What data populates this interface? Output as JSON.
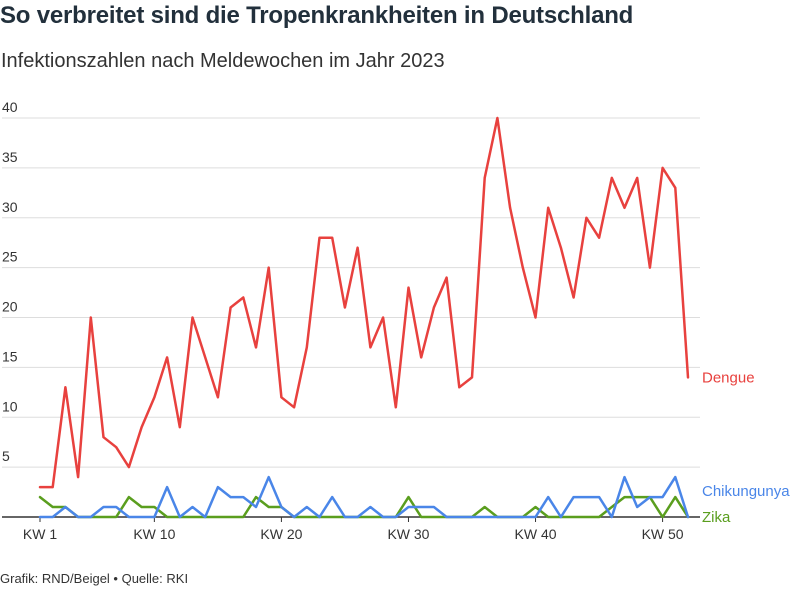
{
  "title": "So verbreitet sind die Tropenkrankheiten in Deutschland",
  "subtitle": "Infektionszahlen nach Meldewochen im Jahr 2023",
  "footer": "Grafik: RND/Beigel • Quelle: RKI",
  "chart_data": {
    "type": "line",
    "title": "So verbreitet sind die Tropenkrankheiten in Deutschland",
    "subtitle": "Infektionszahlen nach Meldewochen im Jahr 2023",
    "xlabel": "",
    "ylabel": "",
    "x": [
      1,
      2,
      3,
      4,
      5,
      6,
      7,
      8,
      9,
      10,
      11,
      12,
      13,
      14,
      15,
      16,
      17,
      18,
      19,
      20,
      21,
      22,
      23,
      24,
      25,
      26,
      27,
      28,
      29,
      30,
      31,
      32,
      33,
      34,
      35,
      36,
      37,
      38,
      39,
      40,
      41,
      42,
      43,
      44,
      45,
      46,
      47,
      48,
      49,
      50,
      51,
      52
    ],
    "xticks": [
      {
        "value": 1,
        "label": "KW 1"
      },
      {
        "value": 10,
        "label": "KW 10"
      },
      {
        "value": 20,
        "label": "KW 20"
      },
      {
        "value": 30,
        "label": "KW 30"
      },
      {
        "value": 40,
        "label": "KW 40"
      },
      {
        "value": 50,
        "label": "KW 50"
      }
    ],
    "yticks": [
      5,
      10,
      15,
      20,
      25,
      30,
      35,
      40
    ],
    "ylim": [
      0,
      40
    ],
    "xlim": [
      1,
      52
    ],
    "grid": true,
    "legend": "direct labels at line ends (right)",
    "series": [
      {
        "name": "Dengue",
        "color": "#e8413e",
        "values": [
          3,
          3,
          13,
          4,
          20,
          8,
          7,
          5,
          9,
          12,
          16,
          9,
          20,
          16,
          12,
          21,
          22,
          17,
          25,
          12,
          11,
          17,
          28,
          28,
          21,
          27,
          17,
          20,
          11,
          23,
          16,
          21,
          24,
          13,
          14,
          34,
          40,
          31,
          25,
          20,
          31,
          27,
          22,
          30,
          28,
          34,
          31,
          34,
          25,
          35,
          33,
          14
        ]
      },
      {
        "name": "Chikungunya",
        "color": "#4a86e8",
        "values": [
          0,
          0,
          1,
          0,
          0,
          1,
          1,
          0,
          0,
          0,
          3,
          0,
          1,
          0,
          3,
          2,
          2,
          1,
          4,
          1,
          0,
          1,
          0,
          2,
          0,
          0,
          1,
          0,
          0,
          1,
          1,
          1,
          0,
          0,
          0,
          0,
          0,
          0,
          0,
          0,
          2,
          0,
          2,
          2,
          2,
          0,
          4,
          1,
          2,
          2,
          4,
          0
        ]
      },
      {
        "name": "Zika",
        "color": "#5a9e1e",
        "values": [
          2,
          1,
          1,
          0,
          0,
          0,
          0,
          2,
          1,
          1,
          0,
          0,
          0,
          0,
          0,
          0,
          0,
          2,
          1,
          1,
          0,
          0,
          0,
          0,
          0,
          0,
          0,
          0,
          0,
          2,
          0,
          0,
          0,
          0,
          0,
          1,
          0,
          0,
          0,
          1,
          0,
          0,
          0,
          0,
          0,
          1,
          2,
          2,
          2,
          0,
          2,
          0
        ]
      }
    ]
  }
}
